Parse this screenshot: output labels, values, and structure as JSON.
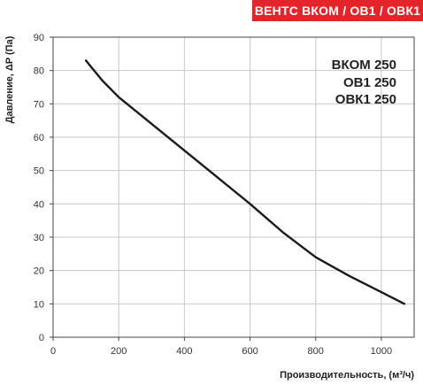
{
  "header": {
    "banner_text": "ВЕНТС ВКОМ / ОВ1 / ОВК1"
  },
  "models": [
    "ВКОМ 250",
    "ОВ1 250",
    "ОВК1 250"
  ],
  "colors": {
    "banner": "#e3242b",
    "grid": "#c8c8c8",
    "curve": "#1a1a1a",
    "axis": "#444444"
  },
  "chart_data": {
    "type": "line",
    "xlabel": "Производительность, (м³/ч)",
    "ylabel": "Давление, ΔP (Па)",
    "xlim": [
      0,
      1100
    ],
    "ylim": [
      0,
      90
    ],
    "xticks": [
      0,
      200,
      400,
      600,
      800,
      1000
    ],
    "yticks": [
      0,
      10,
      20,
      30,
      40,
      50,
      60,
      70,
      80,
      90
    ],
    "grid": true,
    "series": [
      {
        "x": [
          100,
          150,
          200,
          300,
          400,
          500,
          600,
          700,
          800,
          900,
          1000,
          1070
        ],
        "y": [
          83,
          77,
          72,
          64,
          56,
          48,
          40,
          31.5,
          24,
          18.5,
          13.5,
          10
        ]
      }
    ]
  }
}
